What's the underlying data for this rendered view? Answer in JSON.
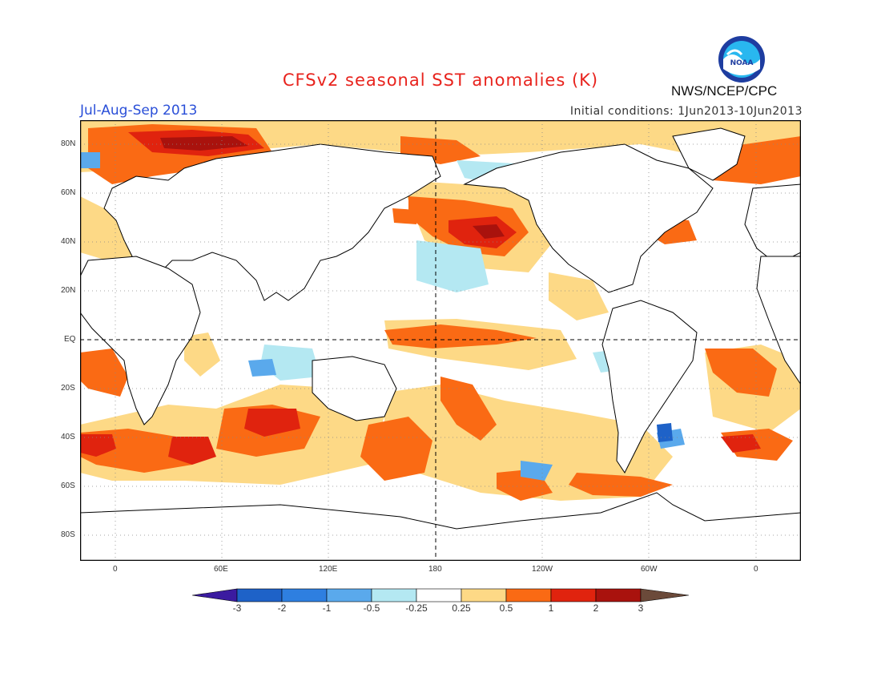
{
  "title": "CFSv2 seasonal SST anomalies (K)",
  "season": "Jul-Aug-Sep 2013",
  "initial_conditions": "Initial conditions: 1Jun2013-10Jun2013",
  "agency": "NWS/NCEP/CPC",
  "logo_text": "NOAA",
  "lat_labels": [
    "80N",
    "60N",
    "40N",
    "20N",
    "EQ",
    "20S",
    "40S",
    "60S",
    "80S"
  ],
  "lon_labels": [
    "0",
    "60E",
    "120E",
    "180",
    "120W",
    "60W",
    "0"
  ],
  "colorbar": {
    "labels": [
      "-3",
      "-2",
      "-1",
      "-0.5",
      "-0.25",
      "0.25",
      "0.5",
      "1",
      "2",
      "3"
    ],
    "colors": [
      "#3b1ba0",
      "#1e62c8",
      "#2e7fe0",
      "#5aa9ec",
      "#b4e8f2",
      "#ffffff",
      "#fdd986",
      "#fa6a14",
      "#e0230e",
      "#a9120d",
      "#6b4a3a"
    ]
  },
  "palette": {
    "land": "#ffffff",
    "coast": "#000000",
    "grid": "#888888"
  }
}
